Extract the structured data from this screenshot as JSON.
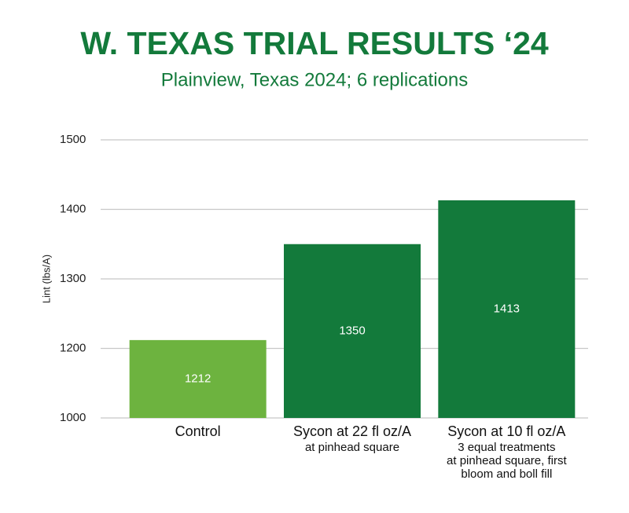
{
  "chart_data": {
    "type": "bar",
    "title": "W. TEXAS TRIAL RESULTS ‘24",
    "subtitle": "Plainview, Texas 2024; 6 replications",
    "y_label": "Lint (lbs/A)",
    "categories": [
      "Control",
      "Sycon at 22 fl oz/A",
      "Sycon at 10 fl oz/A"
    ],
    "category_details": [
      [],
      [
        "at pinhead square"
      ],
      [
        "3 equal treatments",
        "at pinhead square, first",
        "bloom and boll fill"
      ]
    ],
    "values": [
      1212,
      1350,
      1413
    ],
    "colors": [
      "#6db33f",
      "#137a3b",
      "#137a3b"
    ],
    "ylim": [
      1000,
      1500
    ],
    "yticks": [
      1000,
      1200,
      1300,
      1400,
      1500
    ],
    "grid": true
  }
}
